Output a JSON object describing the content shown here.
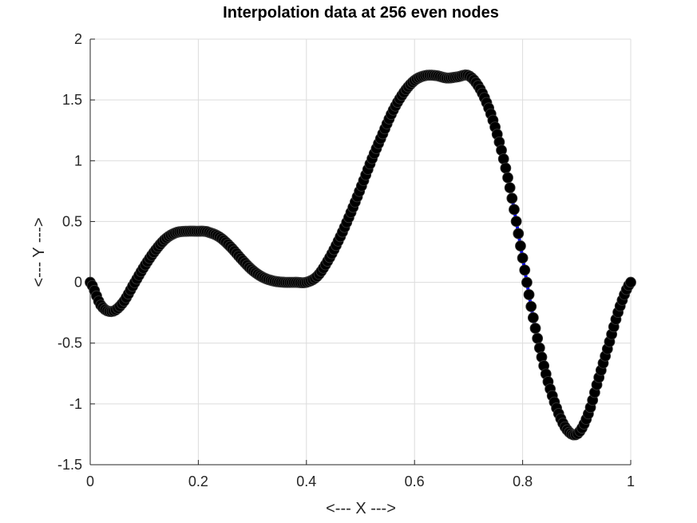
{
  "chart_data": {
    "type": "line",
    "title": "Interpolation data at 256 even nodes",
    "xlabel": "<--- X --->",
    "ylabel": "<---  Y --->",
    "xlim": [
      0,
      1
    ],
    "ylim": [
      -1.5,
      2
    ],
    "grid": true,
    "x_ticks": [
      "0",
      "0.2",
      "0.4",
      "0.6",
      "0.8",
      "1"
    ],
    "y_ticks": [
      "-1.5",
      "-1",
      "-0.5",
      "0",
      "0.5",
      "1",
      "1.5",
      "2"
    ],
    "series": [
      {
        "style": "line with circle markers",
        "node_count": 256,
        "line_color": "#0000ff",
        "marker_color": "#000000",
        "x": [
          0.0,
          0.02,
          0.04,
          0.06,
          0.08,
          0.1,
          0.12,
          0.14,
          0.16,
          0.18,
          0.2,
          0.21,
          0.22,
          0.24,
          0.26,
          0.28,
          0.3,
          0.32,
          0.34,
          0.36,
          0.38,
          0.4,
          0.42,
          0.44,
          0.46,
          0.48,
          0.5,
          0.52,
          0.54,
          0.56,
          0.58,
          0.6,
          0.62,
          0.64,
          0.66,
          0.68,
          0.7,
          0.72,
          0.74,
          0.76,
          0.78,
          0.8,
          0.82,
          0.84,
          0.86,
          0.88,
          0.9,
          0.92,
          0.94,
          0.96,
          0.98,
          1.0
        ],
        "y": [
          0.0,
          -0.19,
          -0.24,
          -0.17,
          -0.02,
          0.13,
          0.26,
          0.36,
          0.41,
          0.42,
          0.42,
          0.42,
          0.41,
          0.37,
          0.29,
          0.19,
          0.1,
          0.04,
          0.01,
          0.0,
          0.0,
          0.0,
          0.05,
          0.18,
          0.35,
          0.55,
          0.77,
          1.0,
          1.21,
          1.41,
          1.56,
          1.66,
          1.7,
          1.7,
          1.68,
          1.69,
          1.7,
          1.6,
          1.4,
          1.1,
          0.7,
          0.2,
          -0.3,
          -0.7,
          -1.0,
          -1.2,
          -1.25,
          -1.1,
          -0.8,
          -0.5,
          -0.2,
          0.0
        ]
      }
    ]
  }
}
